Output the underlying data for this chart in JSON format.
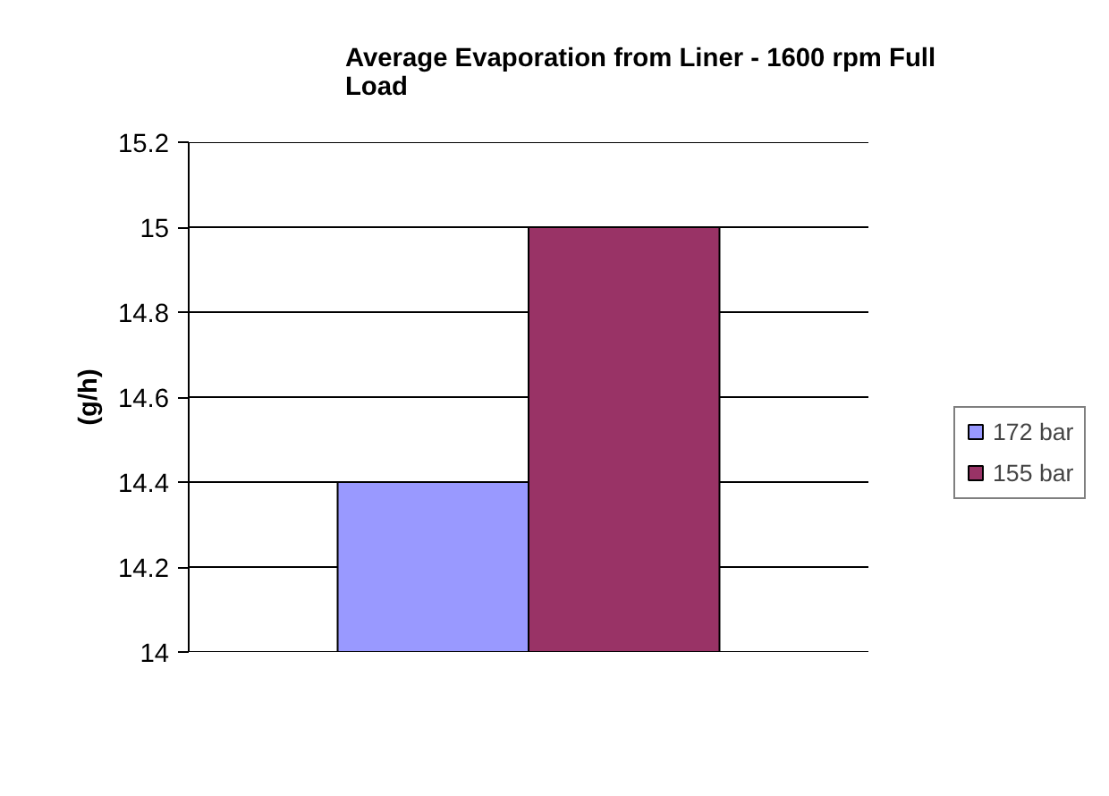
{
  "chart_data": {
    "type": "bar",
    "title": "Average Evaporation from Liner - 1600 rpm Full Load",
    "ylabel": "(g/h)",
    "categories": [
      null
    ],
    "series": [
      {
        "name": "172 bar",
        "color": "#9999ff",
        "values": [
          14.4
        ]
      },
      {
        "name": "155 bar",
        "color": "#993366",
        "values": [
          15.0
        ]
      }
    ],
    "ylim": [
      14,
      15.2
    ],
    "yticks": [
      14,
      14.2,
      14.4,
      14.6,
      14.8,
      15,
      15.2
    ],
    "grid": "y",
    "legend": "right"
  }
}
